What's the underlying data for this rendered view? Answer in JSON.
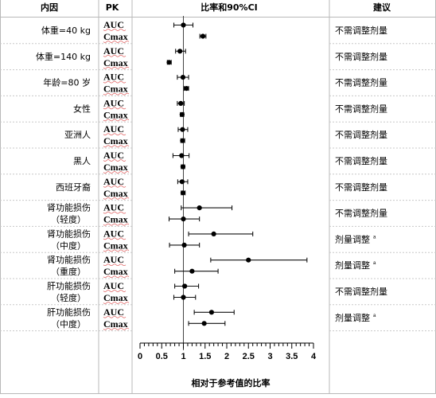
{
  "header": {
    "col_group": "内因",
    "col_pk": "PK",
    "col_ratio": "比率和90%CI",
    "col_rec": "建议"
  },
  "chart_data": {
    "type": "forest",
    "title": "比率和90%CI",
    "xlabel": "相对于参考值的比率",
    "xlim": [
      0,
      4
    ],
    "xticks": [
      "0",
      "0.5",
      "1",
      "1.5",
      "2",
      "2.5",
      "3",
      "3.5",
      "4"
    ],
    "reference_line": 1,
    "rows": [
      {
        "group": [
          "体重=40 kg"
        ],
        "recommendation": "不需调整剂量",
        "superscript": "",
        "AUC": {
          "ratio": 1.0,
          "lo": 0.78,
          "hi": 1.22
        },
        "Cmax": {
          "ratio": 1.45,
          "lo": 1.38,
          "hi": 1.52
        }
      },
      {
        "group": [
          "体重=140 kg"
        ],
        "recommendation": "不需调整剂量",
        "superscript": "",
        "AUC": {
          "ratio": 0.92,
          "lo": 0.82,
          "hi": 1.05
        },
        "Cmax": {
          "ratio": 0.67,
          "lo": 0.63,
          "hi": 0.72
        }
      },
      {
        "group": [
          "年龄=80 岁"
        ],
        "recommendation": "不需调整剂量",
        "superscript": "",
        "AUC": {
          "ratio": 0.99,
          "lo": 0.86,
          "hi": 1.12
        },
        "Cmax": {
          "ratio": 1.07,
          "lo": 1.02,
          "hi": 1.12
        }
      },
      {
        "group": [
          "女性"
        ],
        "recommendation": "不需调整剂量",
        "superscript": "",
        "AUC": {
          "ratio": 0.94,
          "lo": 0.86,
          "hi": 1.02
        },
        "Cmax": {
          "ratio": 0.97,
          "lo": 0.93,
          "hi": 1.01
        }
      },
      {
        "group": [
          "亚洲人"
        ],
        "recommendation": "不需调整剂量",
        "superscript": "",
        "AUC": {
          "ratio": 0.98,
          "lo": 0.88,
          "hi": 1.1
        },
        "Cmax": {
          "ratio": 0.98,
          "lo": 0.94,
          "hi": 1.03
        }
      },
      {
        "group": [
          "黑人"
        ],
        "recommendation": "不需调整剂量",
        "superscript": "",
        "AUC": {
          "ratio": 0.96,
          "lo": 0.76,
          "hi": 1.13
        },
        "Cmax": {
          "ratio": 0.99,
          "lo": 0.95,
          "hi": 1.03
        }
      },
      {
        "group": [
          "西班牙裔"
        ],
        "recommendation": "不需调整剂量",
        "superscript": "",
        "AUC": {
          "ratio": 0.97,
          "lo": 0.87,
          "hi": 1.1
        },
        "Cmax": {
          "ratio": 0.99,
          "lo": 0.95,
          "hi": 1.04
        }
      },
      {
        "group": [
          "肾功能损伤",
          "（轻度）"
        ],
        "recommendation": "不需调整剂量",
        "superscript": "",
        "AUC": {
          "ratio": 1.37,
          "lo": 0.95,
          "hi": 2.12
        },
        "Cmax": {
          "ratio": 1.0,
          "lo": 0.67,
          "hi": 1.37
        }
      },
      {
        "group": [
          "肾功能损伤",
          "（中度）"
        ],
        "recommendation": "剂量调整",
        "superscript": "a",
        "AUC": {
          "ratio": 1.7,
          "lo": 1.12,
          "hi": 2.6
        },
        "Cmax": {
          "ratio": 1.02,
          "lo": 0.68,
          "hi": 1.37
        }
      },
      {
        "group": [
          "肾功能损伤",
          "（重度）"
        ],
        "recommendation": "剂量调整",
        "superscript": "a",
        "AUC": {
          "ratio": 2.5,
          "lo": 1.63,
          "hi": 3.85
        },
        "Cmax": {
          "ratio": 1.2,
          "lo": 0.8,
          "hi": 1.8
        }
      },
      {
        "group": [
          "肝功能损伤",
          "（轻度）"
        ],
        "recommendation": "不需调整剂量",
        "superscript": "",
        "AUC": {
          "ratio": 1.03,
          "lo": 0.8,
          "hi": 1.35
        },
        "Cmax": {
          "ratio": 1.0,
          "lo": 0.78,
          "hi": 1.28
        }
      },
      {
        "group": [
          "肝功能损伤",
          "（中度）"
        ],
        "recommendation": "剂量调整",
        "superscript": "a",
        "AUC": {
          "ratio": 1.65,
          "lo": 1.25,
          "hi": 2.17
        },
        "Cmax": {
          "ratio": 1.48,
          "lo": 1.12,
          "hi": 1.96
        }
      }
    ]
  }
}
